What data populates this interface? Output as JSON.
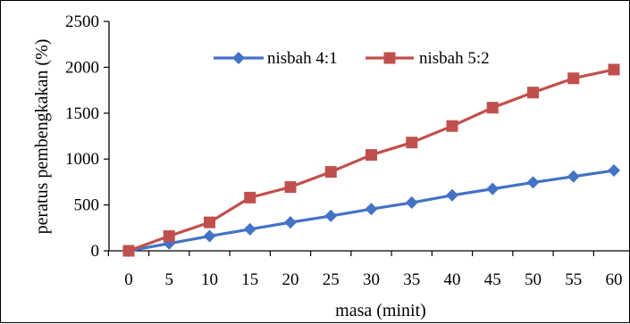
{
  "chart_data": {
    "type": "line",
    "xlabel": "masa (minit)",
    "ylabel": "peratus pembengkakan (%)",
    "x": [
      0,
      5,
      10,
      15,
      20,
      25,
      30,
      35,
      40,
      45,
      50,
      55,
      60
    ],
    "xlim": [
      0,
      60
    ],
    "ylim": [
      0,
      2500
    ],
    "yticks": [
      0,
      500,
      1000,
      1500,
      2000,
      2500
    ],
    "grid": false,
    "legend_position": "top",
    "series": [
      {
        "name": "nisbah 4:1",
        "color": "#4472C4",
        "marker": "diamond",
        "values": [
          0,
          80,
          160,
          235,
          310,
          380,
          455,
          525,
          605,
          675,
          745,
          810,
          875
        ]
      },
      {
        "name": "nisbah 5:2",
        "color": "#C0504D",
        "marker": "square",
        "values": [
          0,
          160,
          310,
          580,
          695,
          860,
          1045,
          1180,
          1360,
          1560,
          1725,
          1880,
          1975
        ]
      }
    ]
  }
}
